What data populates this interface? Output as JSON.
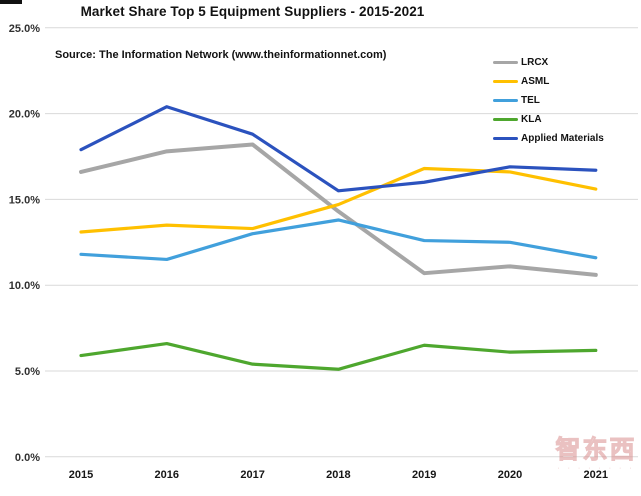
{
  "title": "Market Share Top 5 Equipment Suppliers - 2015-2021",
  "source_note": "Source: The Information Network (www.theinformationnet.com)",
  "watermark": {
    "text": "智东西",
    "dots": "· · · · · · · ·"
  },
  "chart_data": {
    "type": "line",
    "title": "Market Share Top 5 Equipment Suppliers - 2015-2021",
    "categories": [
      "2015",
      "2016",
      "2017",
      "2018",
      "2019",
      "2020",
      "2021"
    ],
    "series": [
      {
        "name": "LRCX",
        "color": "#A6A6A6",
        "stroke_width": 4,
        "values": [
          16.6,
          17.8,
          18.2,
          14.3,
          10.7,
          11.1,
          10.6
        ]
      },
      {
        "name": "ASML",
        "color": "#FFC000",
        "stroke_width": 3.2,
        "values": [
          13.1,
          13.5,
          13.3,
          14.7,
          16.8,
          16.6,
          15.6
        ]
      },
      {
        "name": "TEL",
        "color": "#41A0DC",
        "stroke_width": 3.2,
        "values": [
          11.8,
          11.5,
          13.0,
          13.8,
          12.6,
          12.5,
          11.6
        ]
      },
      {
        "name": "KLA",
        "color": "#4EA72E",
        "stroke_width": 3.2,
        "values": [
          5.9,
          6.6,
          5.4,
          5.1,
          6.5,
          6.1,
          6.2
        ]
      },
      {
        "name": "Applied Materials",
        "color": "#2B52BE",
        "stroke_width": 3.2,
        "values": [
          17.9,
          20.4,
          18.8,
          15.5,
          16.0,
          16.9,
          16.7
        ]
      }
    ],
    "xlabel": "",
    "ylabel": "",
    "ylim": [
      0,
      25
    ],
    "ytick_step": 5,
    "ytick_labels": [
      "0.0%",
      "5.0%",
      "10.0%",
      "15.0%",
      "20.0%",
      "25.0%"
    ],
    "grid": true,
    "gridline_color": "#d9d9d9",
    "legend_position": "right-top",
    "legend_entries": [
      "LRCX",
      "ASML",
      "TEL",
      "KLA",
      "Applied Materials"
    ]
  }
}
